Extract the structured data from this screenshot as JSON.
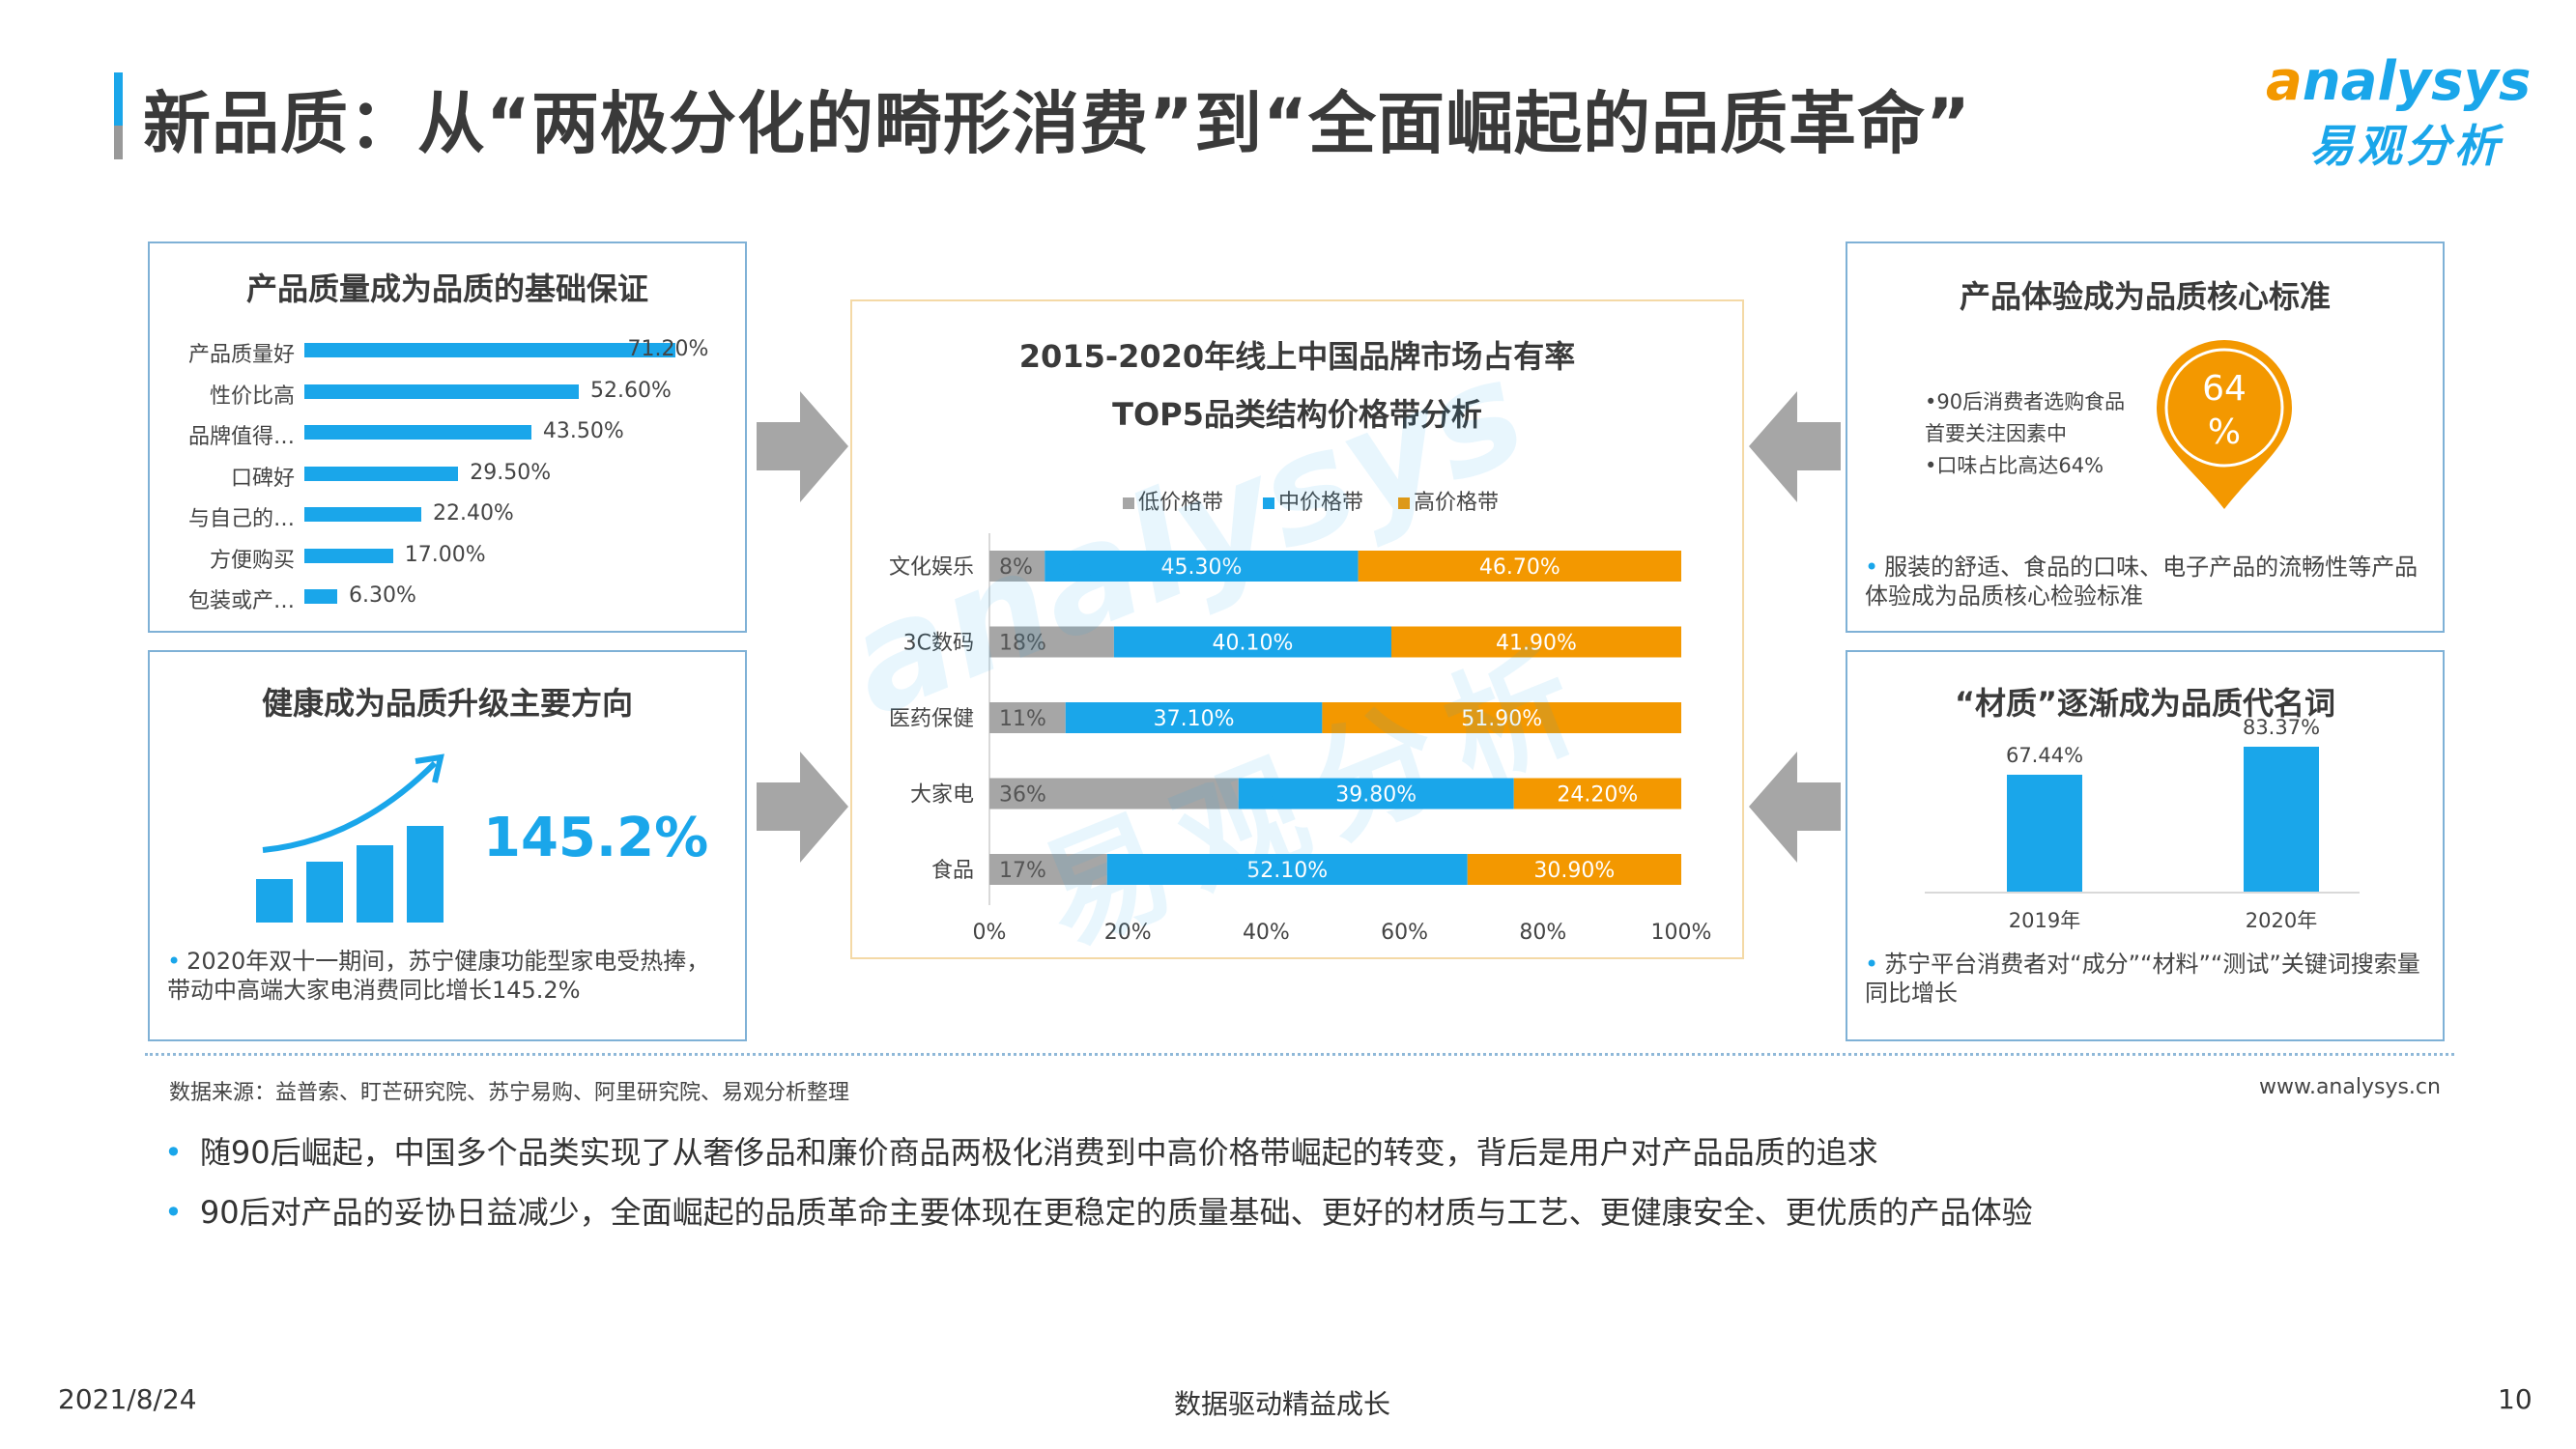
{
  "header": {
    "title": "新品质：从“两极分化的畸形消费”到“全面崛起的品质革命”",
    "logo_en_a": "a",
    "logo_en_rest": "nalysys",
    "logo_cn": "易观分析"
  },
  "watermark": {
    "en": "analysys",
    "cn": "易观分析"
  },
  "panel_quality": {
    "title": "产品质量成为品质的基础保证",
    "items": [
      {
        "label": "产品质量好",
        "value": 71.2,
        "value_text": "71.20%"
      },
      {
        "label": "性价比高",
        "value": 52.6,
        "value_text": "52.60%"
      },
      {
        "label": "品牌值得…",
        "value": 43.5,
        "value_text": "43.50%"
      },
      {
        "label": "口碑好",
        "value": 29.5,
        "value_text": "29.50%"
      },
      {
        "label": "与自己的…",
        "value": 22.4,
        "value_text": "22.40%"
      },
      {
        "label": "方便购买",
        "value": 17.0,
        "value_text": "17.00%"
      },
      {
        "label": "包装或产…",
        "value": 6.3,
        "value_text": "6.30%"
      }
    ],
    "bar_color": "#1aa6ea"
  },
  "panel_health": {
    "title": "健康成为品质升级主要方向",
    "big_value": "145.2%",
    "bullet": "2020年双十一期间，苏宁健康功能型家电受热捧，带动中高端大家电消费同比增长145.2%",
    "icon": "growth-chart-icon"
  },
  "panel_experience": {
    "title": "产品体验成为品质核心标准",
    "lines": [
      "•90后消费者选购食品",
      "首要关注因素中",
      "•口味占比高达64%"
    ],
    "pin_value": "64",
    "pin_unit": "%",
    "bullet": "服装的舒适、食品的口味、电子产品的流畅性等产品体验成为品质核心检验标准",
    "pin_color": "#f39800"
  },
  "panel_material": {
    "title": "“材质”逐渐成为品质代名词",
    "bars": [
      {
        "year": "2019年",
        "value": 67.44,
        "value_text": "67.44%"
      },
      {
        "year": "2020年",
        "value": 83.37,
        "value_text": "83.37%"
      }
    ],
    "bullet": "苏宁平台消费者对“成分”“材料”“测试”关键词搜索量同比增长"
  },
  "chart_data": {
    "type": "bar",
    "orientation": "horizontal-stacked-100",
    "title": "2015-2020年线上中国品牌市场占有率",
    "subtitle": "TOP5品类结构价格带分析",
    "categories": [
      "文化娱乐",
      "3C数码",
      "医药保健",
      "大家电",
      "食品"
    ],
    "series": [
      {
        "name": "低价格带",
        "color": "#a6a6a6",
        "values": [
          8,
          18,
          11,
          36,
          17
        ],
        "labels": [
          "8%",
          "18%",
          "11%",
          "36%",
          "17%"
        ]
      },
      {
        "name": "中价格带",
        "color": "#1aa6ea",
        "values": [
          45.3,
          40.1,
          37.1,
          39.8,
          52.1
        ],
        "labels": [
          "45.30%",
          "40.10%",
          "37.10%",
          "39.80%",
          "52.10%"
        ]
      },
      {
        "name": "高价格带",
        "color": "#f39800",
        "values": [
          46.7,
          41.9,
          51.9,
          24.2,
          30.9
        ],
        "labels": [
          "46.70%",
          "41.90%",
          "51.90%",
          "24.20%",
          "30.90%"
        ]
      }
    ],
    "xlim": [
      0,
      100
    ],
    "x_ticks": [
      "0%",
      "20%",
      "40%",
      "60%",
      "80%",
      "100%"
    ],
    "legend_position": "top"
  },
  "footer": {
    "source": "数据来源：益普索、盯芒研究院、苏宁易购、阿里研究院、易观分析整理",
    "url": "www.analysys.cn"
  },
  "summary": [
    "随90后崛起，中国多个品类实现了从奢侈品和廉价商品两极化消费到中高价格带崛起的转变，背后是用户对产品品质的追求",
    "90后对产品的妥协日益减少，全面崛起的品质革命主要体现在更稳定的质量基础、更好的材质与工艺、更健康安全、更优质的产品体验"
  ],
  "page_footer": {
    "date": "2021/8/24",
    "slogan": "数据驱动精益成长",
    "page": "10"
  }
}
